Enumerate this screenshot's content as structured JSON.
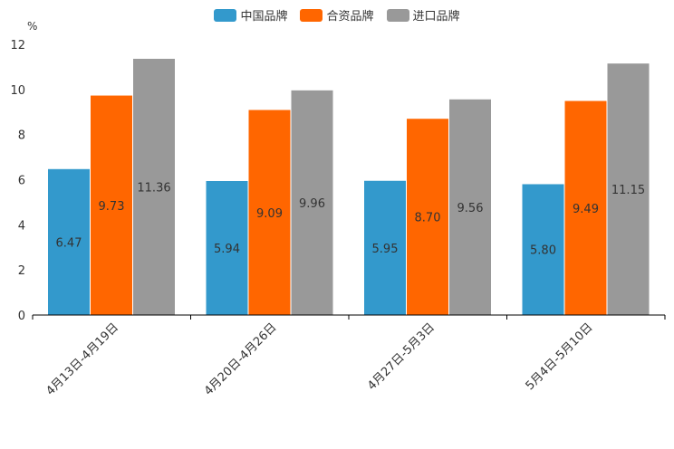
{
  "chart_data": {
    "type": "bar",
    "ylabel": "%",
    "ylim": [
      0,
      12
    ],
    "yticks": [
      "0",
      "2",
      "4",
      "6",
      "8",
      "10",
      "12"
    ],
    "categories": [
      "4月13日-4月19日",
      "4月20日-4月26日",
      "4月27日-5月3日",
      "5月4日-5月10日"
    ],
    "series": [
      {
        "name": "中国品牌",
        "color": "#3399cc",
        "values": [
          6.47,
          5.94,
          5.95,
          5.8
        ],
        "labels": [
          "6.47",
          "5.94",
          "5.95",
          "5.80"
        ]
      },
      {
        "name": "合资品牌",
        "color": "#ff6600",
        "values": [
          9.73,
          9.09,
          8.7,
          9.49
        ],
        "labels": [
          "9.73",
          "9.09",
          "8.70",
          "9.49"
        ]
      },
      {
        "name": "进口品牌",
        "color": "#999999",
        "values": [
          11.36,
          9.96,
          9.56,
          11.15
        ],
        "labels": [
          "11.36",
          "9.96",
          "9.56",
          "11.15"
        ]
      }
    ],
    "legend_position": "top-center",
    "grid": false
  }
}
